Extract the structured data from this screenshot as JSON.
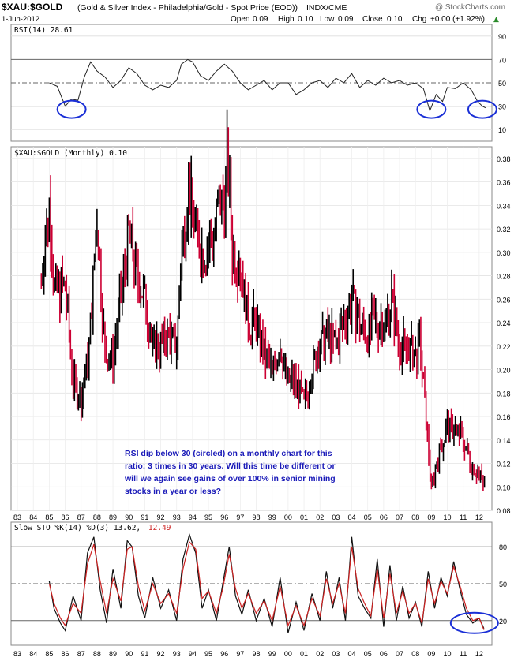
{
  "header": {
    "symbol": "$XAU:$GOLD",
    "description": "(Gold & Silver Index - Philadelphia/Gold - Spot Price (EOD))",
    "exchange": "INDX/CME",
    "watermark": "@ StockCharts.com",
    "date": "1-Jun-2012",
    "quote_parts": [
      "Open",
      "0.09",
      "High",
      "0.10",
      "Low",
      "0.09",
      "Close",
      "0.10",
      "Chg",
      "+0.00 (+1.92%)"
    ],
    "quote_dir_symbol": "▲"
  },
  "rsi_panel": {
    "legend": "RSI(14) 28.61",
    "y_ticks": [
      "90",
      "70",
      "50",
      "30",
      "10"
    ]
  },
  "price_panel": {
    "legend": "$XAU:$GOLD (Monthly) 0.10",
    "y_ticks": [
      "0.38",
      "0.36",
      "0.34",
      "0.32",
      "0.30",
      "0.28",
      "0.26",
      "0.24",
      "0.22",
      "0.20",
      "0.18",
      "0.16",
      "0.14",
      "0.12",
      "0.10",
      "0.08"
    ],
    "annotation_lines": [
      "RSI dip below 30 (circled) on a monthly chart for this",
      "ratio: 3 times in 30 years. Will this time be different or",
      "will we again see gains of over 100% in senior mining",
      "stocks in a year or less?"
    ]
  },
  "sto_panel": {
    "legend_prefix": "Slow STO %K(14) %D(3) 13.62,",
    "legend_d": "12.49",
    "y_ticks": [
      "80",
      "50",
      "20"
    ]
  },
  "x_axis": [
    "83",
    "84",
    "85",
    "86",
    "87",
    "88",
    "89",
    "90",
    "91",
    "92",
    "93",
    "94",
    "95",
    "96",
    "97",
    "98",
    "99",
    "00",
    "01",
    "02",
    "03",
    "04",
    "05",
    "06",
    "07",
    "08",
    "09",
    "10",
    "11",
    "12"
  ],
  "colors": {
    "up": "#000000",
    "down": "#cc0033",
    "circle": "#1a2fd6",
    "annotation": "#1a1ab8",
    "sto_d": "#cc2222"
  },
  "chart_data": [
    {
      "type": "line",
      "title": "RSI(14)",
      "ylim": [
        0,
        100
      ],
      "x": [
        1985.0,
        1985.5,
        1986.0,
        1986.4,
        1986.8,
        1987.2,
        1987.6,
        1988.0,
        1988.5,
        1989.0,
        1989.5,
        1990.0,
        1990.5,
        1991.0,
        1991.5,
        1992.0,
        1992.5,
        1993.0,
        1993.3,
        1993.7,
        1994.0,
        1994.5,
        1995.0,
        1995.5,
        1996.0,
        1996.5,
        1997.0,
        1997.5,
        1998.0,
        1998.5,
        1999.0,
        1999.5,
        2000.0,
        2000.5,
        2001.0,
        2001.5,
        2002.0,
        2002.5,
        2003.0,
        2003.5,
        2004.0,
        2004.5,
        2005.0,
        2005.5,
        2006.0,
        2006.5,
        2007.0,
        2007.5,
        2008.0,
        2008.5,
        2008.9,
        2009.3,
        2009.7,
        2010.0,
        2010.5,
        2011.0,
        2011.5,
        2011.9,
        2012.2,
        2012.4
      ],
      "values": [
        50,
        47,
        30,
        36,
        35,
        55,
        68,
        60,
        55,
        46,
        52,
        63,
        58,
        48,
        44,
        48,
        46,
        52,
        66,
        70,
        68,
        56,
        52,
        60,
        66,
        60,
        50,
        44,
        48,
        52,
        44,
        50,
        50,
        40,
        44,
        50,
        52,
        46,
        54,
        50,
        58,
        46,
        52,
        48,
        54,
        50,
        52,
        48,
        50,
        45,
        26,
        40,
        34,
        46,
        45,
        50,
        44,
        34,
        30,
        28.61
      ],
      "reference_lines": [
        30,
        50,
        70
      ],
      "annotation": "circles at RSI lows in 1986, 2008-09 and 2012"
    },
    {
      "type": "bar",
      "title": "$XAU:$GOLD (Monthly) 0.10",
      "ylim": [
        0.08,
        0.39
      ],
      "x": [
        1984.5,
        1985.0,
        1985.3,
        1986.0,
        1986.5,
        1987.0,
        1987.5,
        1988.0,
        1988.5,
        1989.0,
        1989.5,
        1990.0,
        1990.5,
        1991.0,
        1991.5,
        1992.0,
        1992.5,
        1993.0,
        1993.3,
        1993.7,
        1994.0,
        1994.5,
        1995.0,
        1995.5,
        1996.0,
        1996.2,
        1996.5,
        1997.0,
        1997.5,
        1998.0,
        1998.5,
        1999.0,
        1999.5,
        2000.0,
        2000.5,
        2001.0,
        2001.5,
        2002.0,
        2002.5,
        2003.0,
        2003.5,
        2004.0,
        2004.5,
        2005.0,
        2005.5,
        2006.0,
        2006.5,
        2007.0,
        2007.5,
        2008.0,
        2008.3,
        2008.7,
        2009.0,
        2009.5,
        2010.0,
        2010.5,
        2011.0,
        2011.5,
        2012.0,
        2012.4
      ],
      "values": [
        0.28,
        0.34,
        0.27,
        0.27,
        0.19,
        0.17,
        0.22,
        0.33,
        0.21,
        0.21,
        0.26,
        0.32,
        0.28,
        0.26,
        0.22,
        0.22,
        0.23,
        0.22,
        0.3,
        0.35,
        0.34,
        0.3,
        0.3,
        0.33,
        0.35,
        0.38,
        0.3,
        0.29,
        0.24,
        0.24,
        0.21,
        0.2,
        0.22,
        0.19,
        0.19,
        0.17,
        0.2,
        0.22,
        0.23,
        0.22,
        0.24,
        0.26,
        0.24,
        0.23,
        0.24,
        0.24,
        0.26,
        0.22,
        0.22,
        0.21,
        0.22,
        0.15,
        0.1,
        0.13,
        0.15,
        0.15,
        0.14,
        0.12,
        0.11,
        0.1
      ]
    },
    {
      "type": "line",
      "title": "Slow STO %K(14) %D(3) 13.62, 12.49",
      "ylim": [
        0,
        100
      ],
      "series": [
        {
          "name": "%K",
          "x": [
            1985.0,
            1985.3,
            1985.7,
            1986.0,
            1986.5,
            1987.0,
            1987.4,
            1987.8,
            1988.2,
            1988.6,
            1989.0,
            1989.5,
            1989.9,
            1990.2,
            1990.6,
            1991.0,
            1991.5,
            1992.0,
            1992.5,
            1993.0,
            1993.4,
            1993.8,
            1994.2,
            1994.6,
            1995.0,
            1995.5,
            1995.9,
            1996.3,
            1996.7,
            1997.1,
            1997.5,
            1998.0,
            1998.5,
            1999.0,
            1999.5,
            2000.0,
            2000.5,
            2001.0,
            2001.5,
            2002.0,
            2002.4,
            2002.8,
            2003.2,
            2003.6,
            2004.0,
            2004.4,
            2004.8,
            2005.2,
            2005.6,
            2006.0,
            2006.4,
            2006.8,
            2007.2,
            2007.6,
            2008.0,
            2008.4,
            2008.8,
            2009.2,
            2009.6,
            2010.0,
            2010.4,
            2010.8,
            2011.2,
            2011.6,
            2012.0,
            2012.3
          ],
          "values": [
            52,
            30,
            18,
            12,
            40,
            20,
            75,
            88,
            45,
            18,
            62,
            30,
            85,
            80,
            40,
            22,
            55,
            30,
            45,
            20,
            70,
            90,
            75,
            30,
            45,
            20,
            50,
            80,
            40,
            25,
            45,
            20,
            38,
            15,
            55,
            10,
            35,
            12,
            42,
            20,
            60,
            30,
            55,
            20,
            88,
            40,
            30,
            22,
            70,
            15,
            65,
            20,
            48,
            22,
            35,
            15,
            60,
            30,
            55,
            40,
            68,
            45,
            25,
            18,
            22,
            13.62
          ]
        },
        {
          "name": "%D",
          "x": [
            1985.0,
            1985.3,
            1985.7,
            1986.0,
            1986.5,
            1987.0,
            1987.4,
            1987.8,
            1988.2,
            1988.6,
            1989.0,
            1989.5,
            1989.9,
            1990.2,
            1990.6,
            1991.0,
            1991.5,
            1992.0,
            1992.5,
            1993.0,
            1993.4,
            1993.8,
            1994.2,
            1994.6,
            1995.0,
            1995.5,
            1995.9,
            1996.3,
            1996.7,
            1997.1,
            1997.5,
            1998.0,
            1998.5,
            1999.0,
            1999.5,
            2000.0,
            2000.5,
            2001.0,
            2001.5,
            2002.0,
            2002.4,
            2002.8,
            2003.2,
            2003.6,
            2004.0,
            2004.4,
            2004.8,
            2005.2,
            2005.6,
            2006.0,
            2006.4,
            2006.8,
            2007.2,
            2007.6,
            2008.0,
            2008.4,
            2008.8,
            2009.2,
            2009.6,
            2010.0,
            2010.4,
            2010.8,
            2011.2,
            2011.6,
            2012.0,
            2012.3
          ],
          "values": [
            50,
            34,
            22,
            16,
            34,
            26,
            66,
            82,
            52,
            26,
            54,
            36,
            78,
            80,
            48,
            28,
            50,
            34,
            42,
            26,
            62,
            84,
            78,
            38,
            44,
            26,
            46,
            74,
            46,
            30,
            42,
            26,
            36,
            20,
            48,
            16,
            32,
            16,
            38,
            24,
            54,
            34,
            50,
            26,
            80,
            46,
            34,
            24,
            62,
            22,
            58,
            26,
            44,
            26,
            34,
            18,
            54,
            34,
            52,
            42,
            64,
            48,
            30,
            20,
            22,
            12.49
          ]
        }
      ],
      "reference_lines": [
        20,
        50,
        80
      ]
    }
  ]
}
